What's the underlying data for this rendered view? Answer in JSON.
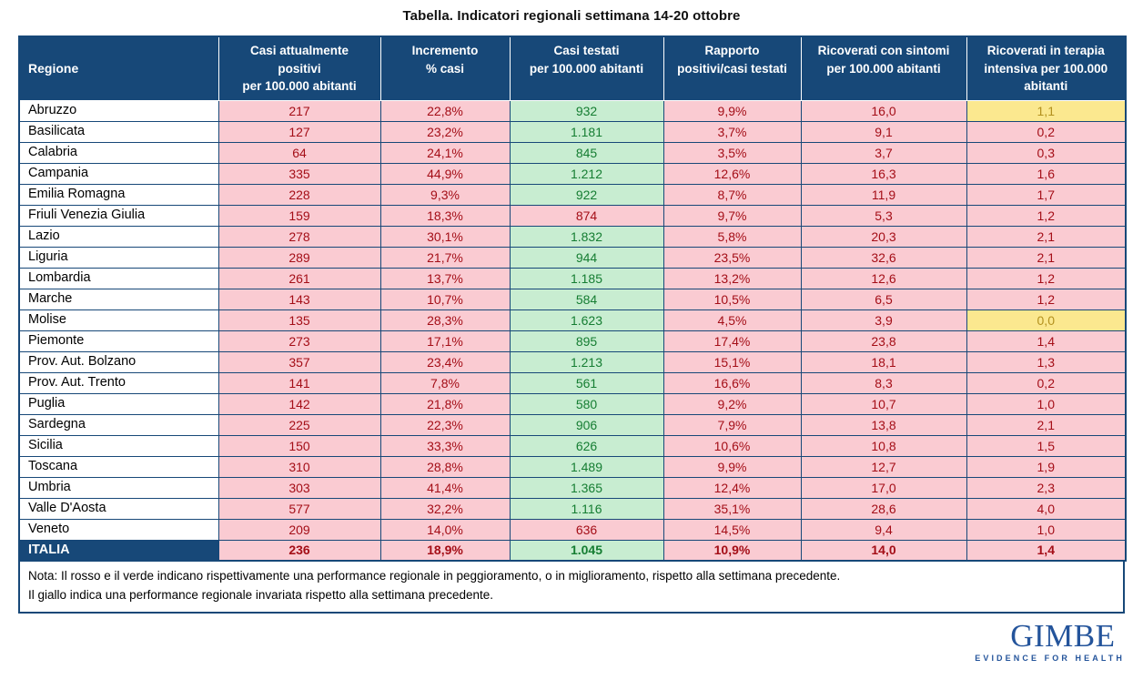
{
  "title": "Tabella. Indicatori regionali settimana 14-20 ottobre",
  "chart_data": {
    "type": "table",
    "title": "Tabella. Indicatori regionali settimana 14-20 ottobre",
    "columns": [
      "Regione",
      "Casi attualmente\npositivi\nper 100.000 abitanti",
      "Incremento\n% casi",
      "Casi testati\nper 100.000 abitanti",
      "Rapporto\npositivi/casi testati",
      "Ricoverati con sintomi\nper 100.000 abitanti",
      "Ricoverati in terapia\nintensiva per 100.000\nabitanti"
    ],
    "rows": [
      {
        "region": "Abruzzo",
        "values": [
          "217",
          "22,8%",
          "932",
          "9,9%",
          "16,0",
          "1,1"
        ],
        "statuses": [
          "bad",
          "bad",
          "good",
          "bad",
          "bad",
          "neutral"
        ],
        "is_total": false
      },
      {
        "region": "Basilicata",
        "values": [
          "127",
          "23,2%",
          "1.181",
          "3,7%",
          "9,1",
          "0,2"
        ],
        "statuses": [
          "bad",
          "bad",
          "good",
          "bad",
          "bad",
          "bad"
        ],
        "is_total": false
      },
      {
        "region": "Calabria",
        "values": [
          "64",
          "24,1%",
          "845",
          "3,5%",
          "3,7",
          "0,3"
        ],
        "statuses": [
          "bad",
          "bad",
          "good",
          "bad",
          "bad",
          "bad"
        ],
        "is_total": false
      },
      {
        "region": "Campania",
        "values": [
          "335",
          "44,9%",
          "1.212",
          "12,6%",
          "16,3",
          "1,6"
        ],
        "statuses": [
          "bad",
          "bad",
          "good",
          "bad",
          "bad",
          "bad"
        ],
        "is_total": false
      },
      {
        "region": "Emilia Romagna",
        "values": [
          "228",
          "9,3%",
          "922",
          "8,7%",
          "11,9",
          "1,7"
        ],
        "statuses": [
          "bad",
          "bad",
          "good",
          "bad",
          "bad",
          "bad"
        ],
        "is_total": false
      },
      {
        "region": "Friuli Venezia Giulia",
        "values": [
          "159",
          "18,3%",
          "874",
          "9,7%",
          "5,3",
          "1,2"
        ],
        "statuses": [
          "bad",
          "bad",
          "bad",
          "bad",
          "bad",
          "bad"
        ],
        "is_total": false
      },
      {
        "region": "Lazio",
        "values": [
          "278",
          "30,1%",
          "1.832",
          "5,8%",
          "20,3",
          "2,1"
        ],
        "statuses": [
          "bad",
          "bad",
          "good",
          "bad",
          "bad",
          "bad"
        ],
        "is_total": false
      },
      {
        "region": "Liguria",
        "values": [
          "289",
          "21,7%",
          "944",
          "23,5%",
          "32,6",
          "2,1"
        ],
        "statuses": [
          "bad",
          "bad",
          "good",
          "bad",
          "bad",
          "bad"
        ],
        "is_total": false
      },
      {
        "region": "Lombardia",
        "values": [
          "261",
          "13,7%",
          "1.185",
          "13,2%",
          "12,6",
          "1,2"
        ],
        "statuses": [
          "bad",
          "bad",
          "good",
          "bad",
          "bad",
          "bad"
        ],
        "is_total": false
      },
      {
        "region": "Marche",
        "values": [
          "143",
          "10,7%",
          "584",
          "10,5%",
          "6,5",
          "1,2"
        ],
        "statuses": [
          "bad",
          "bad",
          "good",
          "bad",
          "bad",
          "bad"
        ],
        "is_total": false
      },
      {
        "region": "Molise",
        "values": [
          "135",
          "28,3%",
          "1.623",
          "4,5%",
          "3,9",
          "0,0"
        ],
        "statuses": [
          "bad",
          "bad",
          "good",
          "bad",
          "bad",
          "neutral"
        ],
        "is_total": false
      },
      {
        "region": "Piemonte",
        "values": [
          "273",
          "17,1%",
          "895",
          "17,4%",
          "23,8",
          "1,4"
        ],
        "statuses": [
          "bad",
          "bad",
          "good",
          "bad",
          "bad",
          "bad"
        ],
        "is_total": false
      },
      {
        "region": "Prov. Aut. Bolzano",
        "values": [
          "357",
          "23,4%",
          "1.213",
          "15,1%",
          "18,1",
          "1,3"
        ],
        "statuses": [
          "bad",
          "bad",
          "good",
          "bad",
          "bad",
          "bad"
        ],
        "is_total": false
      },
      {
        "region": "Prov. Aut. Trento",
        "values": [
          "141",
          "7,8%",
          "561",
          "16,6%",
          "8,3",
          "0,2"
        ],
        "statuses": [
          "bad",
          "bad",
          "good",
          "bad",
          "bad",
          "bad"
        ],
        "is_total": false
      },
      {
        "region": "Puglia",
        "values": [
          "142",
          "21,8%",
          "580",
          "9,2%",
          "10,7",
          "1,0"
        ],
        "statuses": [
          "bad",
          "bad",
          "good",
          "bad",
          "bad",
          "bad"
        ],
        "is_total": false
      },
      {
        "region": "Sardegna",
        "values": [
          "225",
          "22,3%",
          "906",
          "7,9%",
          "13,8",
          "2,1"
        ],
        "statuses": [
          "bad",
          "bad",
          "good",
          "bad",
          "bad",
          "bad"
        ],
        "is_total": false
      },
      {
        "region": "Sicilia",
        "values": [
          "150",
          "33,3%",
          "626",
          "10,6%",
          "10,8",
          "1,5"
        ],
        "statuses": [
          "bad",
          "bad",
          "good",
          "bad",
          "bad",
          "bad"
        ],
        "is_total": false
      },
      {
        "region": "Toscana",
        "values": [
          "310",
          "28,8%",
          "1.489",
          "9,9%",
          "12,7",
          "1,9"
        ],
        "statuses": [
          "bad",
          "bad",
          "good",
          "bad",
          "bad",
          "bad"
        ],
        "is_total": false
      },
      {
        "region": "Umbria",
        "values": [
          "303",
          "41,4%",
          "1.365",
          "12,4%",
          "17,0",
          "2,3"
        ],
        "statuses": [
          "bad",
          "bad",
          "good",
          "bad",
          "bad",
          "bad"
        ],
        "is_total": false
      },
      {
        "region": "Valle D'Aosta",
        "values": [
          "577",
          "32,2%",
          "1.116",
          "35,1%",
          "28,6",
          "4,0"
        ],
        "statuses": [
          "bad",
          "bad",
          "good",
          "bad",
          "bad",
          "bad"
        ],
        "is_total": false
      },
      {
        "region": "Veneto",
        "values": [
          "209",
          "14,0%",
          "636",
          "14,5%",
          "9,4",
          "1,0"
        ],
        "statuses": [
          "bad",
          "bad",
          "bad",
          "bad",
          "bad",
          "bad"
        ],
        "is_total": false
      },
      {
        "region": "ITALIA",
        "values": [
          "236",
          "18,9%",
          "1.045",
          "10,9%",
          "14,0",
          "1,4"
        ],
        "statuses": [
          "bad",
          "bad",
          "good",
          "bad",
          "bad",
          "bad"
        ],
        "is_total": true
      }
    ],
    "status_colors": {
      "bad_background": "#FACBD2",
      "bad_text": "#A40E17",
      "good_background": "#C8EDD1",
      "good_text": "#157D32",
      "neutral_background": "#FBE88F",
      "neutral_text": "#B3911E",
      "header_background": "#174878",
      "header_text": "#FFFFFF"
    }
  },
  "note": {
    "line1": "Nota: Il rosso e il verde indicano rispettivamente una performance regionale in peggioramento, o in miglioramento, rispetto alla settimana precedente.",
    "line2": "Il giallo indica una performance regionale invariata rispetto alla settimana precedente."
  },
  "logo": {
    "name": "GIMBE",
    "tagline": "EVIDENCE FOR HEALTH",
    "brand_color": "#24549B"
  }
}
